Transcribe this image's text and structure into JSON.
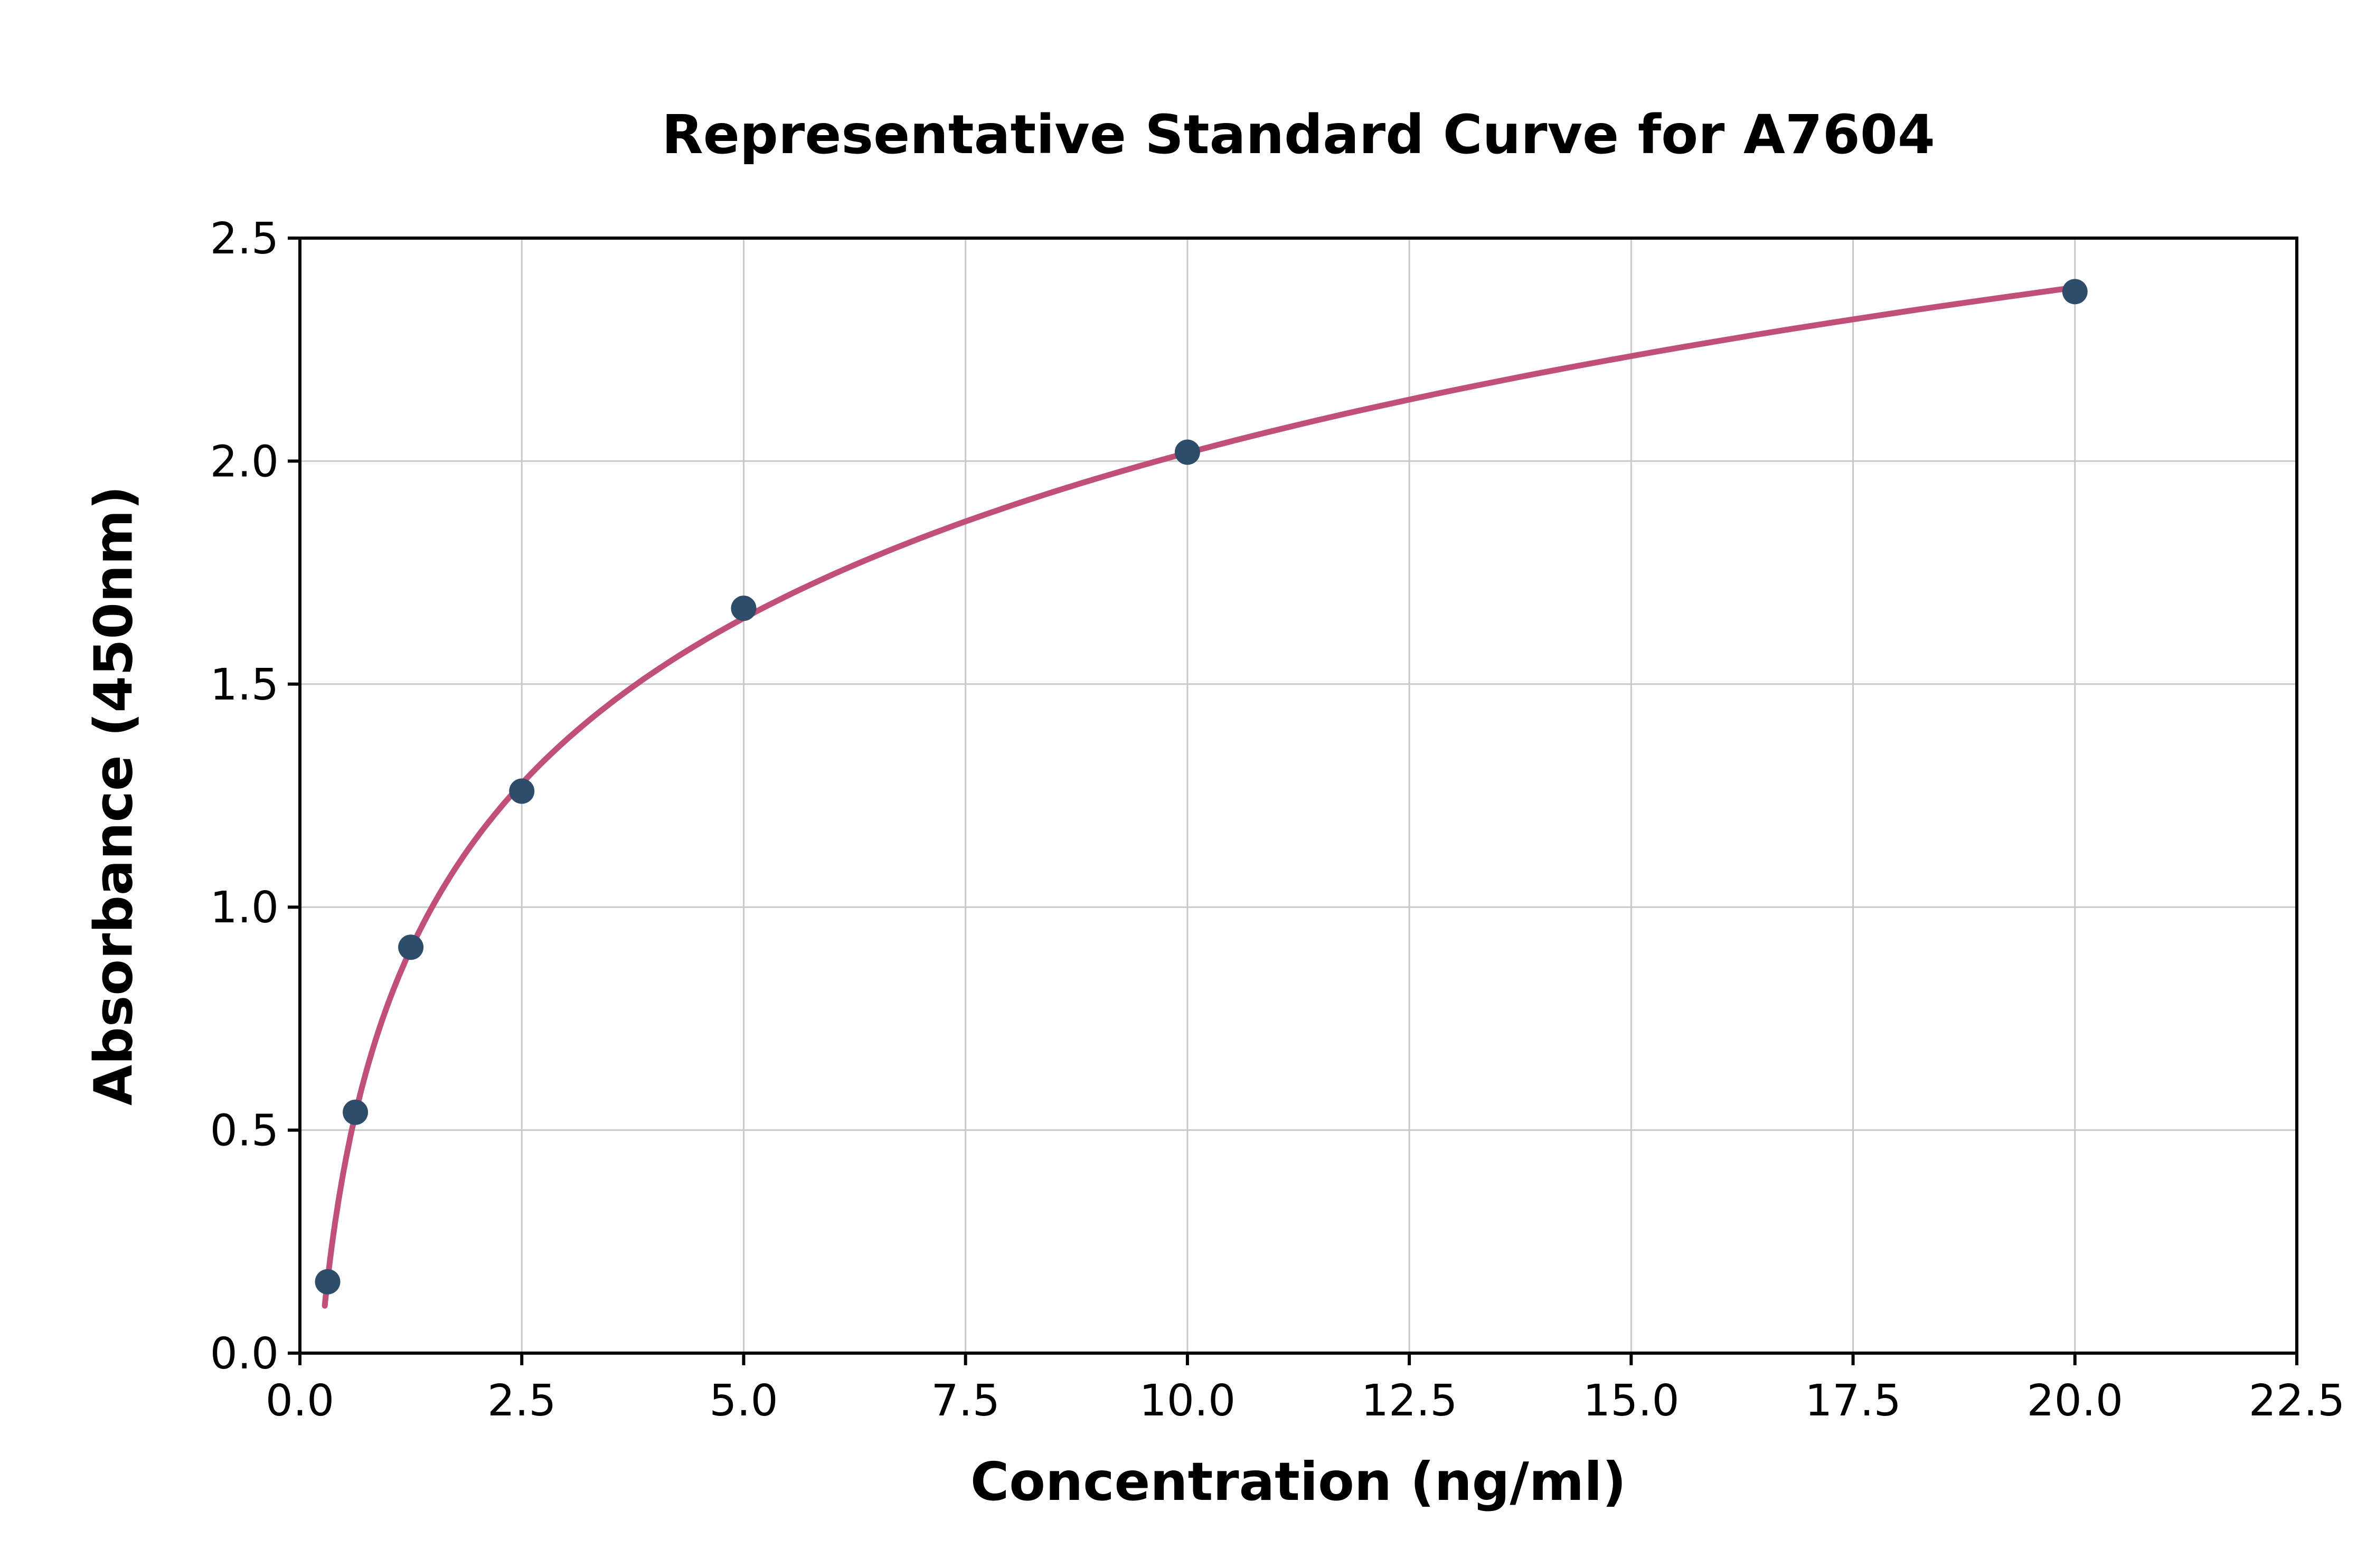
{
  "chart_data": {
    "type": "scatter",
    "title": "Representative Standard Curve for A7604",
    "xlabel": "Concentration (ng/ml)",
    "ylabel": "Absorbance (450nm)",
    "xlim": [
      0,
      22.5
    ],
    "ylim": [
      0,
      2.5
    ],
    "xticks": [
      0.0,
      2.5,
      5.0,
      7.5,
      10.0,
      12.5,
      15.0,
      17.5,
      20.0,
      22.5
    ],
    "xtick_labels": [
      "0.0",
      "2.5",
      "5.0",
      "7.5",
      "10.0",
      "12.5",
      "15.0",
      "17.5",
      "20.0",
      "22.5"
    ],
    "yticks": [
      0.0,
      0.5,
      1.0,
      1.5,
      2.0,
      2.5
    ],
    "ytick_labels": [
      "0.0",
      "0.5",
      "1.0",
      "1.5",
      "2.0",
      "2.5"
    ],
    "grid": true,
    "legend": "none",
    "points": [
      {
        "x": 0.3125,
        "y": 0.16
      },
      {
        "x": 0.625,
        "y": 0.54
      },
      {
        "x": 1.25,
        "y": 0.91
      },
      {
        "x": 2.5,
        "y": 1.26
      },
      {
        "x": 5.0,
        "y": 1.67
      },
      {
        "x": 10.0,
        "y": 2.02
      },
      {
        "x": 20.0,
        "y": 2.38
      }
    ],
    "fit_curve": "logarithmic",
    "colors": {
      "curve": "#c0507a",
      "marker": "#2e4d6b",
      "grid": "#c9c9c9",
      "axis": "#000000",
      "tick_text": "#000000",
      "background": "#ffffff"
    }
  }
}
